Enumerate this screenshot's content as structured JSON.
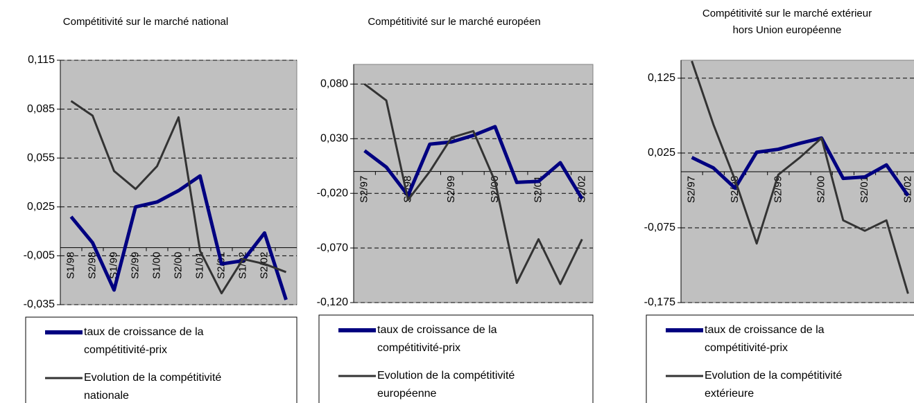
{
  "chart_data": [
    {
      "type": "line",
      "title": "Compétitivité sur le marché national",
      "categories": [
        "S1/98",
        "S2/98",
        "S1/99",
        "S2/99",
        "S1/00",
        "S2/00",
        "S1/01",
        "S2/01",
        "S1/02",
        "S2/02",
        null
      ],
      "series": [
        {
          "name": "taux de croissance de la compétitivité-prix",
          "color": "#000080",
          "values": [
            0.019,
            0.003,
            -0.026,
            0.025,
            0.028,
            0.035,
            0.044,
            -0.01,
            -0.008,
            0.009,
            -0.032
          ]
        },
        {
          "name": "Evolution de la compétitivité nationale",
          "color": "#333333",
          "values": [
            0.09,
            0.081,
            0.047,
            0.036,
            0.05,
            0.08,
            -0.002,
            -0.028,
            -0.007,
            -0.01,
            -0.015
          ]
        }
      ],
      "ylim": [
        -0.035,
        0.115
      ],
      "yticks": [
        {
          "value": -0.035,
          "label": "-0,035"
        },
        {
          "value": -0.005,
          "label": "-0,005"
        },
        {
          "value": 0.025,
          "label": "0,025"
        },
        {
          "value": 0.055,
          "label": "0,055"
        },
        {
          "value": 0.085,
          "label": "0,085"
        },
        {
          "value": 0.115,
          "label": "0,115"
        }
      ],
      "grid": true
    },
    {
      "type": "line",
      "title": "Compétitivité sur le marché européen",
      "categories": [
        "S2/97",
        null,
        "S2/98",
        null,
        "S2/99",
        null,
        "S2/00",
        null,
        "S2/01",
        null,
        "S2/02"
      ],
      "series": [
        {
          "name": "taux de croissance de la compétitivité-prix",
          "color": "#000080",
          "values": [
            0.019,
            0.004,
            -0.022,
            0.025,
            0.027,
            0.033,
            0.041,
            -0.01,
            -0.009,
            0.008,
            -0.025
          ]
        },
        {
          "name": "Evolution de la compétitivité européenne",
          "color": "#333333",
          "values": [
            0.08,
            0.065,
            -0.026,
            0.0,
            0.031,
            0.037,
            -0.009,
            -0.102,
            -0.062,
            -0.103,
            -0.062
          ]
        }
      ],
      "ylim": [
        -0.12,
        0.098
      ],
      "yticks": [
        {
          "value": -0.12,
          "label": "-0,120"
        },
        {
          "value": -0.07,
          "label": "-0,070"
        },
        {
          "value": -0.02,
          "label": "-0,020"
        },
        {
          "value": 0.03,
          "label": "0,030"
        },
        {
          "value": 0.08,
          "label": "0,080"
        }
      ],
      "grid": true
    },
    {
      "type": "line",
      "title": "Compétitivité sur le marché extérieur\nhors Union européenne",
      "categories": [
        "S2/97",
        null,
        "S2/98",
        null,
        "S2/99",
        null,
        "S2/00",
        null,
        "S2/01",
        null,
        "S2/02"
      ],
      "series": [
        {
          "name": "taux de croissance de la compétitivité-prix",
          "color": "#000080",
          "values": [
            0.019,
            0.005,
            -0.022,
            0.026,
            0.03,
            0.038,
            0.045,
            -0.009,
            -0.007,
            0.009,
            -0.032
          ]
        },
        {
          "name": "Evolution de la compétitivité extérieure",
          "color": "#333333",
          "values": [
            0.148,
            0.063,
            -0.011,
            -0.096,
            -0.004,
            0.019,
            0.045,
            -0.065,
            -0.079,
            -0.065,
            -0.163
          ]
        }
      ],
      "ylim": [
        -0.175,
        0.149
      ],
      "yticks": [
        {
          "value": -0.175,
          "label": "-0,175"
        },
        {
          "value": -0.075,
          "label": "-0,075"
        },
        {
          "value": 0.025,
          "label": "0,025"
        },
        {
          "value": 0.125,
          "label": "0,125"
        }
      ],
      "grid": true
    }
  ]
}
